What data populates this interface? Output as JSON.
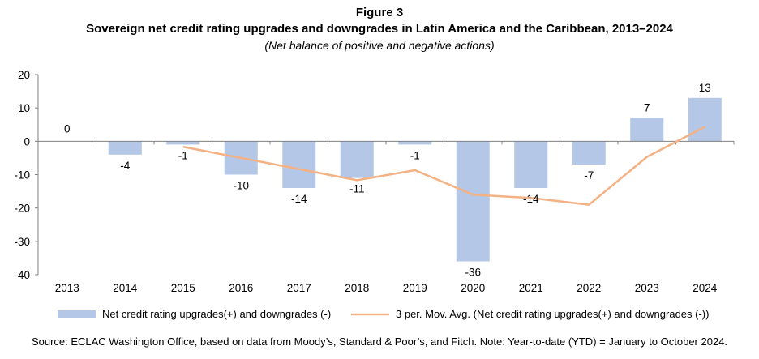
{
  "figure_label": "Figure 3",
  "chart_data": {
    "type": "bar",
    "title": "Sovereign net credit rating upgrades and downgrades in Latin America and the Caribbean, 2013–2024",
    "subtitle": "(Net balance of positive and negative actions)",
    "categories": [
      "2013",
      "2014",
      "2015",
      "2016",
      "2017",
      "2018",
      "2019",
      "2020",
      "2021",
      "2022",
      "2023",
      "2024"
    ],
    "series": [
      {
        "name": "Net credit rating upgrades(+) and downgrades (-)",
        "type": "bar",
        "color": "#b4c7e7",
        "values": [
          0,
          -4,
          -1,
          -10,
          -14,
          -11,
          -1,
          -36,
          -14,
          -7,
          7,
          13
        ],
        "labels": [
          "0",
          "-4",
          "-1",
          "-10",
          "-14",
          "-11",
          "-1",
          "-36",
          "-14",
          "-7",
          "7",
          "13"
        ]
      },
      {
        "name": "3 per. Mov. Avg. (Net credit rating upgrades(+) and downgrades (-))",
        "type": "line",
        "color": "#f4b183",
        "values": [
          null,
          null,
          -1.67,
          -5,
          -8.33,
          -11.67,
          -8.67,
          -16,
          -17,
          -19,
          -4.67,
          4.33
        ]
      }
    ],
    "ylim": [
      -40,
      20
    ],
    "yticks": [
      -40,
      -30,
      -20,
      -10,
      0,
      10,
      20
    ],
    "ytick_labels": [
      "-40",
      "-30",
      "-20",
      "-10",
      "0",
      "10",
      "20"
    ],
    "grid": false,
    "legend_position": "bottom",
    "xlabel": "",
    "ylabel": ""
  },
  "source_note": "Source:  ECLAC Washington Office, based on data from Moody’s, Standard & Poor’s, and Fitch. Note: Year-to-date (YTD) = January to October 2024."
}
